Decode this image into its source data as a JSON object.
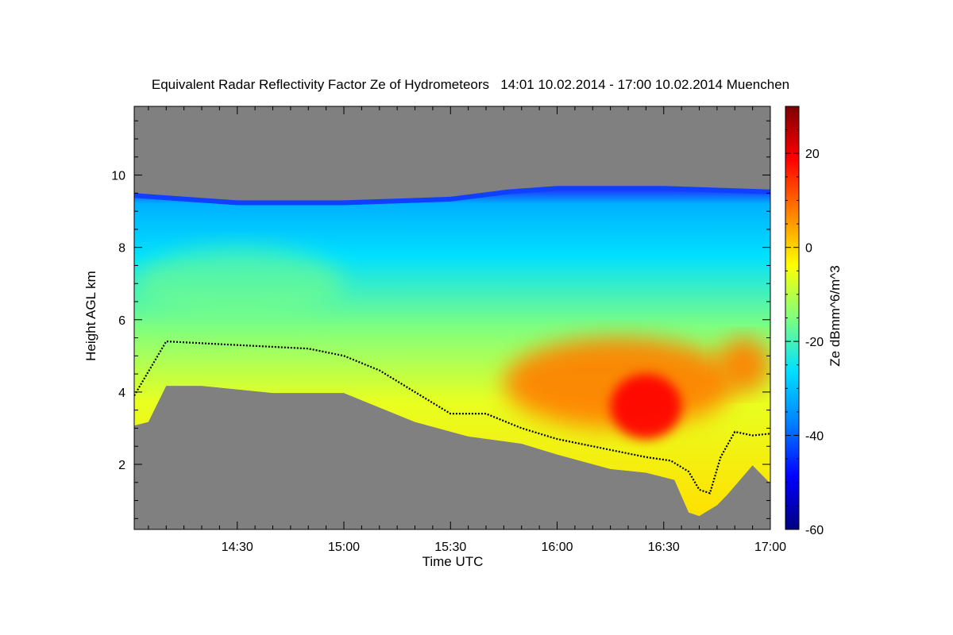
{
  "chart_data": {
    "type": "heatmap",
    "title": "Equivalent Radar Reflectivity Factor Ze of Hydrometeors   14:01 10.02.2014 - 17:00 10.02.2014 Muenchen",
    "xlabel": "Time UTC",
    "ylabel": "Height AGL km",
    "colorbar_label": "Ze dBmm^6/m^3",
    "x_range": [
      "14:01",
      "17:00"
    ],
    "x_ticks": [
      "14:30",
      "15:00",
      "15:30",
      "16:00",
      "16:30",
      "17:00"
    ],
    "y_range": [
      0.2,
      11.9
    ],
    "y_ticks": [
      2,
      4,
      6,
      8,
      10
    ],
    "colorbar_range": [
      -60,
      30
    ],
    "colorbar_ticks": [
      -60,
      -40,
      -20,
      0,
      20
    ],
    "no_data_color": "#808080",
    "colormap": [
      "#00007f",
      "#0000ff",
      "#0080ff",
      "#00e0ff",
      "#7fff7f",
      "#ffff00",
      "#ff8000",
      "#ff0000",
      "#7f0000"
    ],
    "cloud_top_profile": {
      "time": [
        "14:01",
        "14:30",
        "15:00",
        "15:30",
        "15:46",
        "16:00",
        "16:30",
        "17:00"
      ],
      "height_km": [
        9.5,
        9.3,
        9.3,
        9.4,
        9.6,
        9.7,
        9.7,
        9.6
      ]
    },
    "cloud_base_profile": {
      "time": [
        "14:01",
        "14:05",
        "14:10",
        "14:20",
        "14:40",
        "15:00",
        "15:20",
        "15:35",
        "15:50",
        "16:00",
        "16:15",
        "16:25",
        "16:33",
        "16:37",
        "16:40",
        "16:45",
        "16:48",
        "16:55",
        "17:00"
      ],
      "height_km": [
        3.2,
        3.3,
        4.3,
        4.3,
        4.1,
        4.1,
        3.3,
        2.9,
        2.7,
        2.4,
        2.0,
        1.9,
        1.7,
        0.8,
        0.7,
        1.0,
        1.3,
        2.1,
        1.6
      ]
    },
    "reflectivity_regions": [
      {
        "time_start": "14:01",
        "time_end": "15:00",
        "height_km": [
          6.0,
          8.0
        ],
        "ze_dbz": -15
      },
      {
        "time_start": "15:45",
        "time_end": "16:50",
        "height_km": [
          3.0,
          5.5
        ],
        "ze_dbz": 8
      },
      {
        "time_start": "16:15",
        "time_end": "16:35",
        "height_km": [
          2.7,
          4.5
        ],
        "ze_dbz": 14
      },
      {
        "time_start": "16:45",
        "time_end": "17:00",
        "height_km": [
          4.0,
          5.5
        ],
        "ze_dbz": 5
      }
    ],
    "melting_layer_profile": {
      "time": [
        "14:01",
        "14:10",
        "14:30",
        "14:50",
        "15:00",
        "15:10",
        "15:20",
        "15:30",
        "15:40",
        "15:50",
        "16:00",
        "16:15",
        "16:25",
        "16:32",
        "16:37",
        "16:40",
        "16:43",
        "16:46",
        "16:50",
        "16:55",
        "17:00"
      ],
      "height_km": [
        3.9,
        5.4,
        5.3,
        5.2,
        5.0,
        4.6,
        4.0,
        3.4,
        3.4,
        3.0,
        2.7,
        2.4,
        2.2,
        2.1,
        1.8,
        1.3,
        1.2,
        2.2,
        2.9,
        2.8,
        2.85
      ]
    }
  }
}
